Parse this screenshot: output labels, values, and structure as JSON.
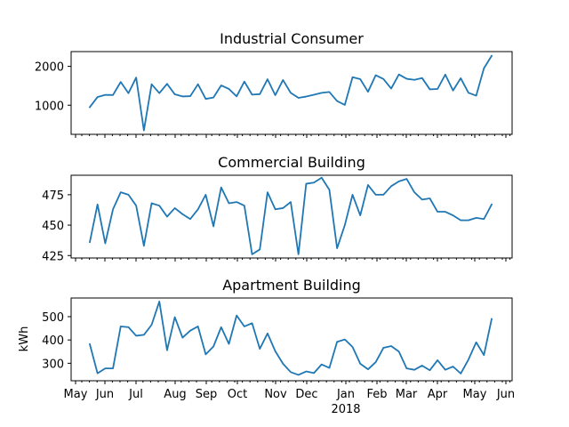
{
  "chart_data": [
    {
      "type": "line",
      "title": "Industrial Consumer",
      "xlabel": "",
      "ylabel": "",
      "ylim": [
        250,
        2380
      ],
      "yticks": [
        1000,
        2000
      ],
      "show_x_tick_labels": false,
      "line_color": "#1f77b4",
      "grid": false,
      "series": [
        {
          "values": [
            950,
            1210,
            1265,
            1262,
            1598,
            1310,
            1712,
            350,
            1540,
            1310,
            1550,
            1280,
            1225,
            1233,
            1540,
            1162,
            1198,
            1510,
            1418,
            1228,
            1608,
            1272,
            1285,
            1668,
            1258,
            1648,
            1318,
            1190,
            1222,
            1268,
            1318,
            1340,
            1108,
            1008,
            1722,
            1670,
            1345,
            1772,
            1675,
            1428,
            1792,
            1680,
            1652,
            1700,
            1408,
            1418,
            1788,
            1378,
            1695,
            1320,
            1245,
            1950,
            2270
          ]
        }
      ]
    },
    {
      "type": "line",
      "title": "Commercial Building",
      "xlabel": "",
      "ylabel": "",
      "ylim": [
        423,
        491
      ],
      "yticks": [
        425,
        450,
        475
      ],
      "show_x_tick_labels": false,
      "line_color": "#1f77b4",
      "grid": false,
      "series": [
        {
          "values": [
            436,
            467,
            435,
            463,
            477,
            475,
            466,
            433,
            468,
            466,
            457,
            464,
            459,
            455,
            463,
            475,
            449,
            481,
            468,
            469,
            466,
            426,
            430,
            477,
            463,
            464,
            469,
            426,
            484,
            485,
            489,
            479,
            431,
            450,
            475,
            458,
            483,
            475,
            475,
            482,
            486,
            488,
            477,
            471,
            472,
            461,
            461,
            458,
            454,
            454,
            456,
            455,
            467
          ]
        }
      ]
    },
    {
      "type": "line",
      "title": "Apartment Building",
      "xlabel": "",
      "ylabel": "kWh",
      "ylim": [
        225,
        580
      ],
      "yticks": [
        300,
        400,
        500
      ],
      "show_x_tick_labels": true,
      "x_tick_labels": [
        "May",
        "Jun",
        "Jul",
        "Aug",
        "Sep",
        "Oct",
        "Nov",
        "Dec",
        "Jan",
        "Feb",
        "Mar",
        "Apr",
        "May",
        "Jun"
      ],
      "x_secondary_label": "2018",
      "line_color": "#1f77b4",
      "grid": false,
      "series": [
        {
          "values": [
            382,
            257,
            278,
            278,
            458,
            455,
            418,
            422,
            465,
            565,
            356,
            498,
            410,
            440,
            458,
            338,
            372,
            455,
            383,
            505,
            458,
            472,
            362,
            428,
            352,
            298,
            262,
            250,
            265,
            258,
            295,
            280,
            392,
            402,
            370,
            298,
            274,
            305,
            366,
            374,
            350,
            278,
            272,
            290,
            270,
            313,
            272,
            286,
            256,
            316,
            390,
            335,
            490
          ]
        }
      ]
    }
  ]
}
